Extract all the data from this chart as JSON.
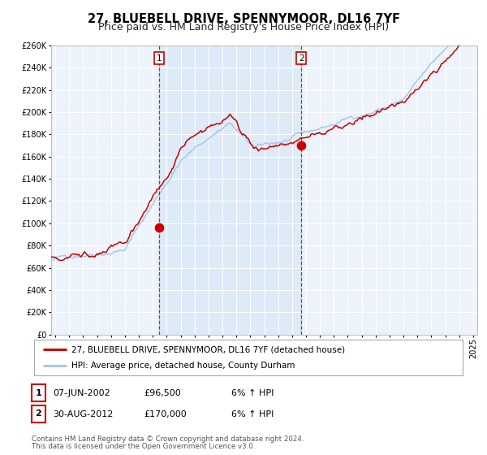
{
  "title": "27, BLUEBELL DRIVE, SPENNYMOOR, DL16 7YF",
  "subtitle": "Price paid vs. HM Land Registry's House Price Index (HPI)",
  "ylim": [
    0,
    260000
  ],
  "yticks": [
    0,
    20000,
    40000,
    60000,
    80000,
    100000,
    120000,
    140000,
    160000,
    180000,
    200000,
    220000,
    240000,
    260000
  ],
  "xlim_start": 1994.7,
  "xlim_end": 2025.3,
  "xtick_years": [
    1995,
    1996,
    1997,
    1998,
    1999,
    2000,
    2001,
    2002,
    2003,
    2004,
    2005,
    2006,
    2007,
    2008,
    2009,
    2010,
    2011,
    2012,
    2013,
    2014,
    2015,
    2016,
    2017,
    2018,
    2019,
    2020,
    2021,
    2022,
    2023,
    2024,
    2025
  ],
  "hpi_color": "#a8c8e8",
  "price_color": "#cc0000",
  "sale1_x": 2002.44,
  "sale1_y": 96500,
  "sale2_x": 2012.66,
  "sale2_y": 170000,
  "shade_color": "#ddeaf7",
  "dashed_color": "#cc0000",
  "legend_line1": "27, BLUEBELL DRIVE, SPENNYMOOR, DL16 7YF (detached house)",
  "legend_line2": "HPI: Average price, detached house, County Durham",
  "table_row1": [
    "1",
    "07-JUN-2002",
    "£96,500",
    "6% ↑ HPI"
  ],
  "table_row2": [
    "2",
    "30-AUG-2012",
    "£170,000",
    "6% ↑ HPI"
  ],
  "footnote1": "Contains HM Land Registry data © Crown copyright and database right 2024.",
  "footnote2": "This data is licensed under the Open Government Licence v3.0.",
  "background_plot": "#edf3fa",
  "background_fig": "#ffffff",
  "grid_color": "#ffffff",
  "title_fontsize": 10.5,
  "subtitle_fontsize": 9,
  "tick_fontsize": 7
}
